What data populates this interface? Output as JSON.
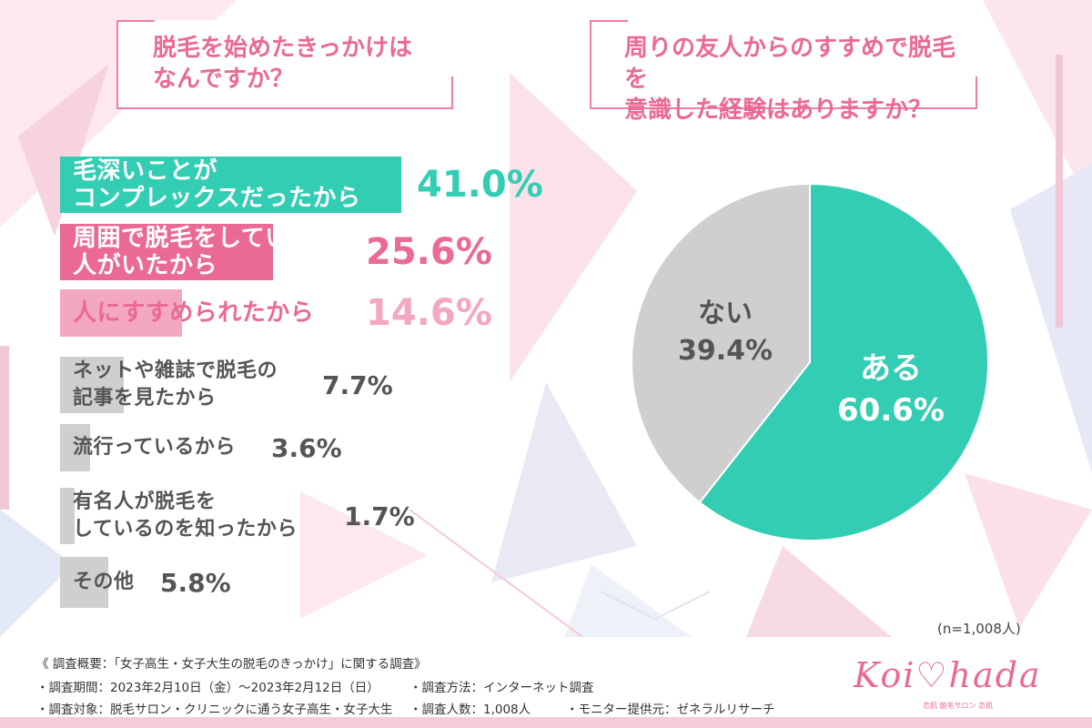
{
  "colors": {
    "teal": "#33cdb4",
    "pink": "#ea6a93",
    "pink_light": "#f3a7c0",
    "gray": "#cfcfcf",
    "gray_dark": "#555555",
    "accent_pink": "#ef7fa0"
  },
  "question_left": "脱毛を始めたきっかけは\nなんですか？",
  "question_right": "周りの友人からのすすめで脱毛を\n意識した経験はありますか？",
  "chart_data": [
    {
      "type": "bar",
      "title": "脱毛を始めたきっかけは\nなんですか？",
      "categories": [
        "毛深いことが\nコンプレックスだったから",
        "周囲で脱毛をしている\n人がいたから",
        "人にすすめられたから",
        "ネットや雑誌で脱毛の\n記事を見たから",
        "流行っているから",
        "有名人が脱毛を\nしているのを知ったから",
        "その他"
      ],
      "values": [
        41.0,
        25.6,
        14.6,
        7.7,
        3.6,
        1.7,
        5.8
      ],
      "value_labels": [
        "41.0%",
        "25.6%",
        "14.6%",
        "7.7%",
        "3.6%",
        "1.7%",
        "5.8%"
      ],
      "orientation": "horizontal"
    },
    {
      "type": "pie",
      "title": "周りの友人からのすすめで脱毛を\n意識した経験はありますか？",
      "categories": [
        "ある",
        "ない"
      ],
      "values": [
        60.6,
        39.4
      ],
      "value_labels": [
        "60.6%",
        "39.4%"
      ],
      "colors": [
        "#33cdb4",
        "#cfcfcf"
      ]
    }
  ],
  "sample_note": "(n=1,008人)",
  "footer": {
    "heading": "《 調査概要：「女子高生・女子大生の脱毛のきっかけ」に関する調査》",
    "period": "・調査期間：2023年2月10日（金）〜2023年2月12日（日）",
    "method": "・調査方法：インターネット調査",
    "target": "・調査対象：脱毛サロン・クリニックに通う女子高生・女子大生",
    "count": "・調査人数：1,008人",
    "provider": "・モニター提供元：ゼネラルリサーチ"
  },
  "logo": {
    "text": "Koi♡hada",
    "subtitle": "恋肌 脱毛サロン 恋肌"
  }
}
